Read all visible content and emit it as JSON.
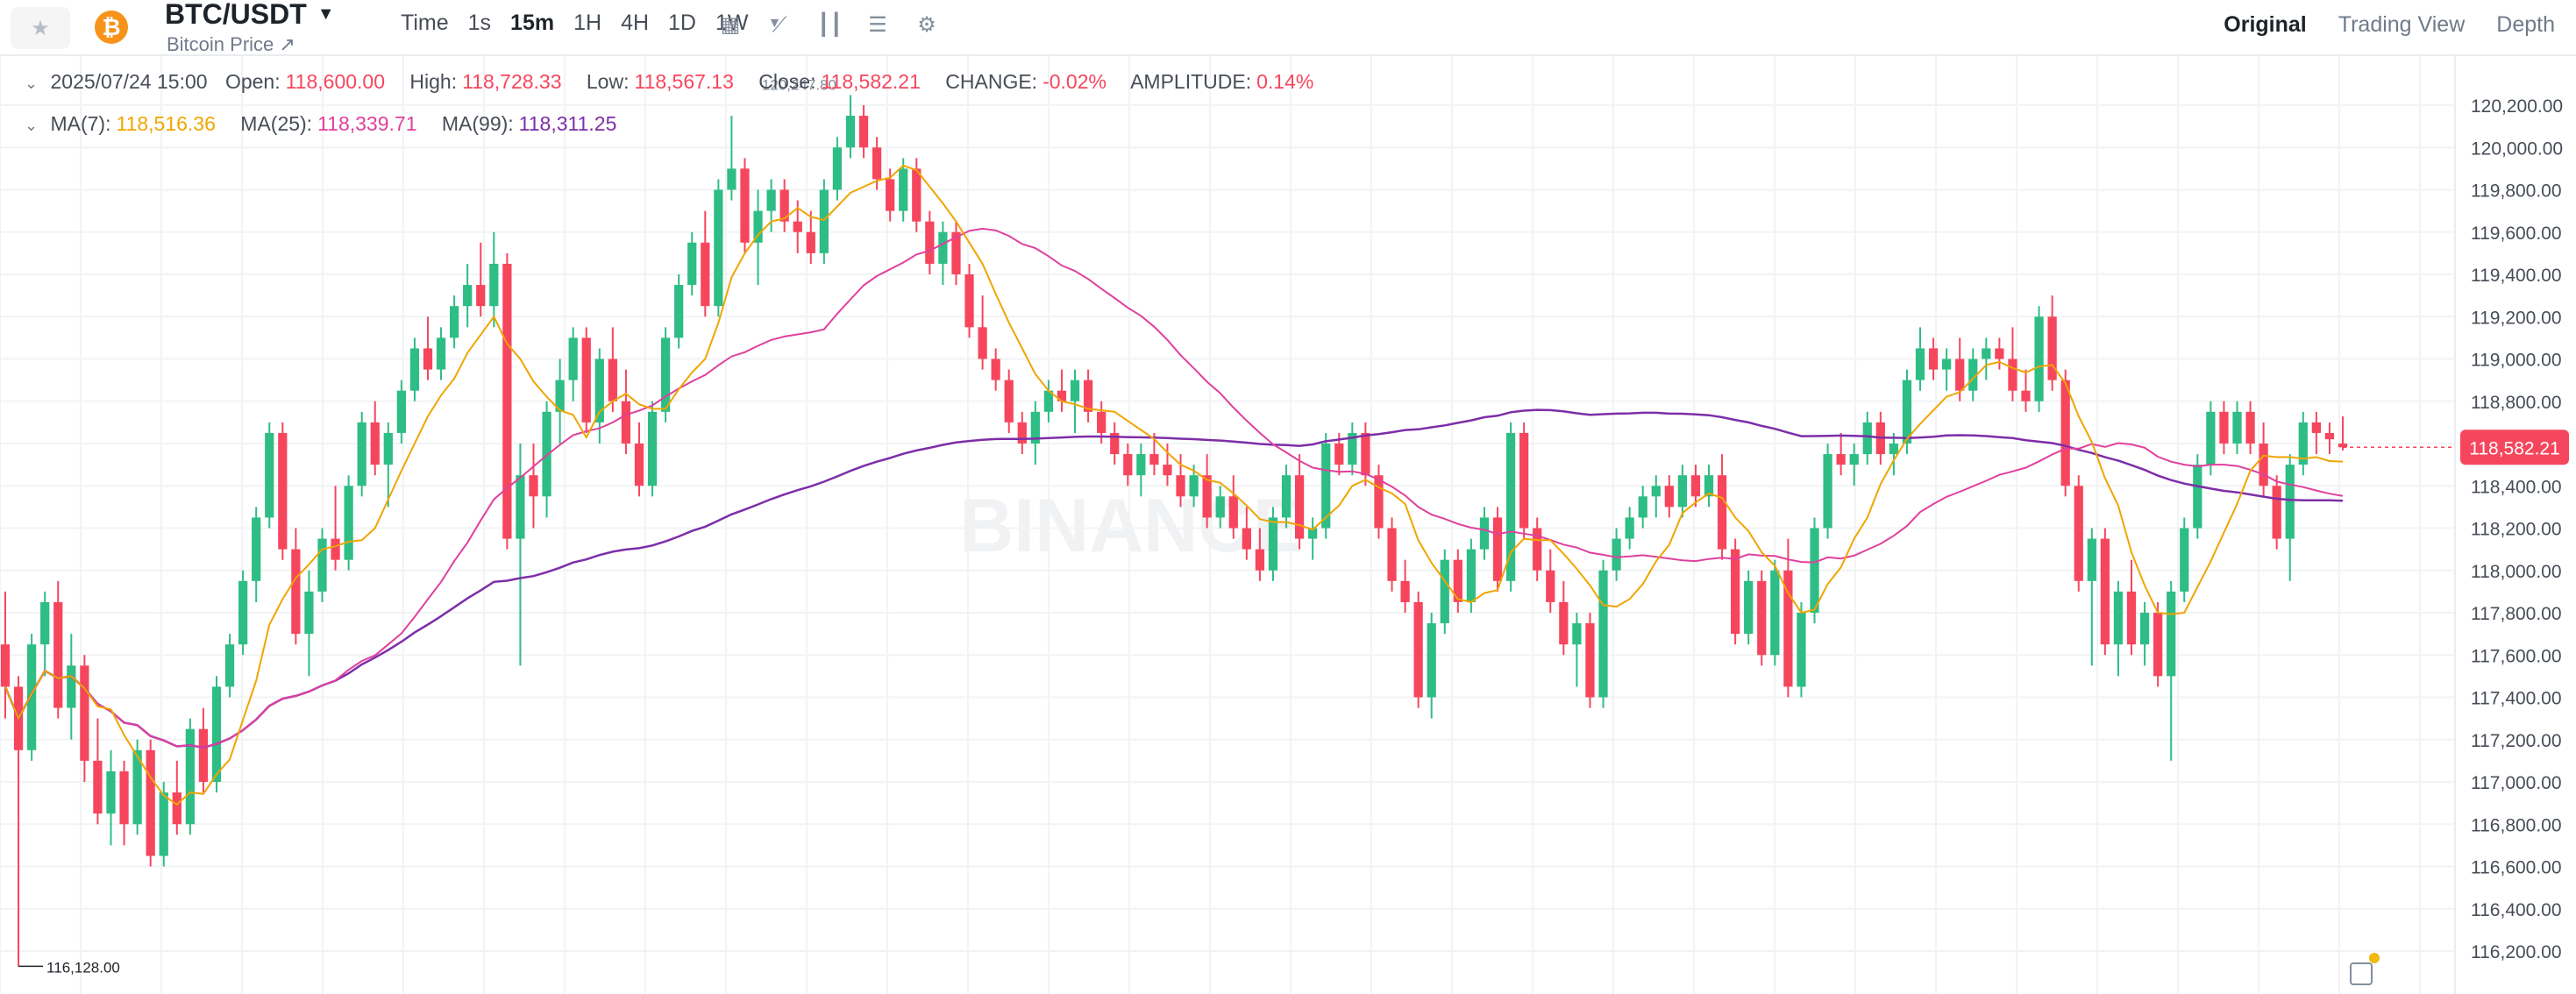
{
  "header": {
    "pair": "BTC/USDT",
    "subtitle": "Bitcoin Price ↗",
    "coin_glyph": "₿",
    "intervals": [
      "Time",
      "1s",
      "15m",
      "1H",
      "4H",
      "1D",
      "1W"
    ],
    "active_interval": "15m",
    "views": [
      "Original",
      "Trading View",
      "Depth"
    ],
    "active_view": "Original"
  },
  "ohlc_legend": {
    "datetime": "2025/07/24 15:00",
    "open_label": "Open:",
    "open": "118,600.00",
    "high_label": "High:",
    "high": "118,728.33",
    "low_label": "Low:",
    "low": "118,567.13",
    "close_label": "Close:",
    "close": "118,582.21",
    "change_label": "CHANGE:",
    "change": "-0.02%",
    "amplitude_label": "AMPLITUDE:",
    "amplitude": "0.14%"
  },
  "ma_legend": {
    "ma7_label": "MA(7):",
    "ma7": "118,516.36",
    "ma25_label": "MA(25):",
    "ma25": "118,339.71",
    "ma99_label": "MA(99):",
    "ma99": "118,311.25"
  },
  "colors": {
    "up": "#2ebd85",
    "down": "#f6465d",
    "ma7": "#f0a500",
    "ma25": "#e0409e",
    "ma99": "#7d2ea8",
    "grid": "#f2f3f5"
  },
  "watermark": "BINANCE",
  "chart_data": {
    "type": "candlestick",
    "y_axis_ticks": [
      "120,200.00",
      "120,000.00",
      "119,800.00",
      "119,600.00",
      "119,400.00",
      "119,200.00",
      "119,000.00",
      "118,800.00",
      "118,600.00",
      "118,400.00",
      "118,200.00",
      "118,000.00",
      "117,800.00",
      "117,600.00",
      "117,400.00",
      "117,200.00",
      "117,000.00",
      "116,800.00",
      "116,600.00",
      "116,400.00",
      "116,200.00"
    ],
    "ylim": [
      116100,
      120400
    ],
    "last_price_label": "118,582.21",
    "last_price": 118582.21,
    "max_label": "120,247.80",
    "min_label": "116,128.00",
    "candles": [
      [
        117650,
        117900,
        117300,
        117450
      ],
      [
        117450,
        117500,
        116128,
        117150
      ],
      [
        117150,
        117700,
        117100,
        117650
      ],
      [
        117650,
        117900,
        117500,
        117850
      ],
      [
        117850,
        117950,
        117300,
        117350
      ],
      [
        117350,
        117700,
        117200,
        117550
      ],
      [
        117550,
        117600,
        117000,
        117100
      ],
      [
        117100,
        117300,
        116800,
        116850
      ],
      [
        116850,
        117150,
        116700,
        117050
      ],
      [
        117050,
        117100,
        116700,
        116800
      ],
      [
        116800,
        117200,
        116750,
        117150
      ],
      [
        117150,
        117200,
        116600,
        116650
      ],
      [
        116650,
        117000,
        116600,
        116950
      ],
      [
        116950,
        117100,
        116750,
        116800
      ],
      [
        116800,
        117300,
        116750,
        117250
      ],
      [
        117250,
        117350,
        116950,
        117000
      ],
      [
        117000,
        117500,
        116950,
        117450
      ],
      [
        117450,
        117700,
        117400,
        117650
      ],
      [
        117650,
        118000,
        117600,
        117950
      ],
      [
        117950,
        118300,
        117850,
        118250
      ],
      [
        118250,
        118700,
        118200,
        118650
      ],
      [
        118650,
        118700,
        118050,
        118100
      ],
      [
        118100,
        118200,
        117650,
        117700
      ],
      [
        117700,
        118000,
        117500,
        117900
      ],
      [
        117900,
        118200,
        117850,
        118150
      ],
      [
        118150,
        118400,
        118000,
        118050
      ],
      [
        118050,
        118450,
        118000,
        118400
      ],
      [
        118400,
        118750,
        118350,
        118700
      ],
      [
        118700,
        118800,
        118450,
        118500
      ],
      [
        118500,
        118700,
        118300,
        118650
      ],
      [
        118650,
        118900,
        118600,
        118850
      ],
      [
        118850,
        119100,
        118800,
        119050
      ],
      [
        119050,
        119200,
        118900,
        118950
      ],
      [
        118950,
        119150,
        118900,
        119100
      ],
      [
        119100,
        119300,
        119050,
        119250
      ],
      [
        119250,
        119450,
        119150,
        119350
      ],
      [
        119350,
        119550,
        119200,
        119250
      ],
      [
        119250,
        119600,
        119150,
        119450
      ],
      [
        119450,
        119500,
        118100,
        118150
      ],
      [
        118150,
        118600,
        117550,
        118450
      ],
      [
        118450,
        118600,
        118200,
        118350
      ],
      [
        118350,
        118800,
        118250,
        118750
      ],
      [
        118750,
        119000,
        118600,
        118900
      ],
      [
        118900,
        119150,
        118800,
        119100
      ],
      [
        119100,
        119150,
        118650,
        118700
      ],
      [
        118700,
        119050,
        118600,
        119000
      ],
      [
        119000,
        119150,
        118750,
        118800
      ],
      [
        118800,
        118950,
        118550,
        118600
      ],
      [
        118600,
        118700,
        118350,
        118400
      ],
      [
        118400,
        118800,
        118350,
        118750
      ],
      [
        118750,
        119150,
        118700,
        119100
      ],
      [
        119100,
        119400,
        119050,
        119350
      ],
      [
        119350,
        119600,
        119300,
        119550
      ],
      [
        119550,
        119700,
        119200,
        119250
      ],
      [
        119250,
        119850,
        119200,
        119800
      ],
      [
        119800,
        120150,
        119750,
        119900
      ],
      [
        119900,
        119950,
        119500,
        119550
      ],
      [
        119550,
        119800,
        119350,
        119700
      ],
      [
        119700,
        119850,
        119600,
        119800
      ],
      [
        119800,
        119850,
        119600,
        119650
      ],
      [
        119650,
        119750,
        119500,
        119600
      ],
      [
        119600,
        119700,
        119450,
        119500
      ],
      [
        119500,
        119850,
        119450,
        119800
      ],
      [
        119800,
        120050,
        119750,
        120000
      ],
      [
        120000,
        120247.8,
        119950,
        120150
      ],
      [
        120150,
        120200,
        119950,
        120000
      ],
      [
        120000,
        120050,
        119800,
        119850
      ],
      [
        119850,
        119900,
        119650,
        119700
      ],
      [
        119700,
        119950,
        119650,
        119900
      ],
      [
        119900,
        119950,
        119600,
        119650
      ],
      [
        119650,
        119700,
        119400,
        119450
      ],
      [
        119450,
        119650,
        119350,
        119600
      ],
      [
        119600,
        119650,
        119350,
        119400
      ],
      [
        119400,
        119450,
        119100,
        119150
      ],
      [
        119150,
        119300,
        118950,
        119000
      ],
      [
        119000,
        119050,
        118850,
        118900
      ],
      [
        118900,
        118950,
        118650,
        118700
      ],
      [
        118700,
        118750,
        118550,
        118600
      ],
      [
        118600,
        118800,
        118500,
        118750
      ],
      [
        118750,
        118900,
        118700,
        118850
      ],
      [
        118850,
        118950,
        118750,
        118800
      ],
      [
        118800,
        118950,
        118650,
        118900
      ],
      [
        118900,
        118950,
        118700,
        118750
      ],
      [
        118750,
        118800,
        118600,
        118650
      ],
      [
        118650,
        118700,
        118500,
        118550
      ],
      [
        118550,
        118600,
        118400,
        118450
      ],
      [
        118450,
        118600,
        118350,
        118550
      ],
      [
        118550,
        118650,
        118450,
        118500
      ],
      [
        118500,
        118600,
        118400,
        118450
      ],
      [
        118450,
        118550,
        118300,
        118350
      ],
      [
        118350,
        118500,
        118300,
        118450
      ],
      [
        118450,
        118550,
        118200,
        118250
      ],
      [
        118250,
        118400,
        118200,
        118350
      ],
      [
        118350,
        118450,
        118150,
        118200
      ],
      [
        118200,
        118300,
        118050,
        118100
      ],
      [
        118100,
        118200,
        117950,
        118000
      ],
      [
        118000,
        118300,
        117950,
        118250
      ],
      [
        118250,
        118500,
        118200,
        118450
      ],
      [
        118450,
        118550,
        118100,
        118150
      ],
      [
        118150,
        118250,
        118050,
        118200
      ],
      [
        118200,
        118650,
        118150,
        118600
      ],
      [
        118600,
        118650,
        118450,
        118500
      ],
      [
        118500,
        118700,
        118450,
        118650
      ],
      [
        118650,
        118700,
        118400,
        118450
      ],
      [
        118450,
        118500,
        118150,
        118200
      ],
      [
        118200,
        118250,
        117900,
        117950
      ],
      [
        117950,
        118050,
        117800,
        117850
      ],
      [
        117850,
        117900,
        117350,
        117400
      ],
      [
        117400,
        117800,
        117300,
        117750
      ],
      [
        117750,
        118100,
        117700,
        118050
      ],
      [
        118050,
        118100,
        117800,
        117850
      ],
      [
        117850,
        118150,
        117800,
        118100
      ],
      [
        118100,
        118300,
        118050,
        118250
      ],
      [
        118250,
        118300,
        117900,
        117950
      ],
      [
        117950,
        118700,
        117900,
        118650
      ],
      [
        118650,
        118700,
        118150,
        118200
      ],
      [
        118200,
        118250,
        117950,
        118000
      ],
      [
        118000,
        118100,
        117800,
        117850
      ],
      [
        117850,
        117950,
        117600,
        117650
      ],
      [
        117650,
        117800,
        117450,
        117750
      ],
      [
        117750,
        117800,
        117350,
        117400
      ],
      [
        117400,
        118050,
        117350,
        118000
      ],
      [
        118000,
        118200,
        117950,
        118150
      ],
      [
        118150,
        118300,
        118100,
        118250
      ],
      [
        118250,
        118400,
        118200,
        118350
      ],
      [
        118350,
        118450,
        118250,
        118400
      ],
      [
        118400,
        118450,
        118250,
        118300
      ],
      [
        118300,
        118500,
        118250,
        118450
      ],
      [
        118450,
        118500,
        118300,
        118350
      ],
      [
        118350,
        118500,
        118300,
        118450
      ],
      [
        118450,
        118550,
        118050,
        118100
      ],
      [
        118100,
        118150,
        117650,
        117700
      ],
      [
        117700,
        118000,
        117650,
        117950
      ],
      [
        117950,
        118000,
        117550,
        117600
      ],
      [
        117600,
        118050,
        117550,
        118000
      ],
      [
        118000,
        118150,
        117400,
        117450
      ],
      [
        117450,
        117850,
        117400,
        117800
      ],
      [
        117800,
        118250,
        117750,
        118200
      ],
      [
        118200,
        118600,
        118150,
        118550
      ],
      [
        118550,
        118650,
        118450,
        118500
      ],
      [
        118500,
        118600,
        118400,
        118550
      ],
      [
        118550,
        118750,
        118500,
        118700
      ],
      [
        118700,
        118750,
        118500,
        118550
      ],
      [
        118550,
        118650,
        118450,
        118600
      ],
      [
        118600,
        118950,
        118550,
        118900
      ],
      [
        118900,
        119150,
        118850,
        119050
      ],
      [
        119050,
        119100,
        118900,
        118950
      ],
      [
        118950,
        119050,
        118850,
        119000
      ],
      [
        119000,
        119100,
        118800,
        118850
      ],
      [
        118850,
        119050,
        118800,
        119000
      ],
      [
        119000,
        119100,
        118900,
        119050
      ],
      [
        119050,
        119100,
        118950,
        119000
      ],
      [
        119000,
        119150,
        118800,
        118850
      ],
      [
        118850,
        118950,
        118750,
        118800
      ],
      [
        118800,
        119250,
        118750,
        119200
      ],
      [
        119200,
        119300,
        118850,
        118900
      ],
      [
        118900,
        118950,
        118350,
        118400
      ],
      [
        118400,
        118450,
        117900,
        117950
      ],
      [
        117950,
        118200,
        117550,
        118150
      ],
      [
        118150,
        118200,
        117600,
        117650
      ],
      [
        117650,
        117950,
        117500,
        117900
      ],
      [
        117900,
        118050,
        117600,
        117650
      ],
      [
        117650,
        117850,
        117550,
        117800
      ],
      [
        117800,
        117850,
        117450,
        117500
      ],
      [
        117500,
        117950,
        117100,
        117900
      ],
      [
        117900,
        118250,
        117850,
        118200
      ],
      [
        118200,
        118550,
        118150,
        118500
      ],
      [
        118500,
        118800,
        118450,
        118750
      ],
      [
        118750,
        118800,
        118550,
        118600
      ],
      [
        118600,
        118800,
        118550,
        118750
      ],
      [
        118750,
        118800,
        118550,
        118600
      ],
      [
        118600,
        118700,
        118350,
        118400
      ],
      [
        118400,
        118450,
        118100,
        118150
      ],
      [
        118150,
        118550,
        117950,
        118500
      ],
      [
        118500,
        118750,
        118450,
        118700
      ],
      [
        118700,
        118750,
        118550,
        118650
      ],
      [
        118650,
        118700,
        118550,
        118620
      ],
      [
        118600,
        118728.33,
        118567.13,
        118582.21
      ]
    ]
  }
}
